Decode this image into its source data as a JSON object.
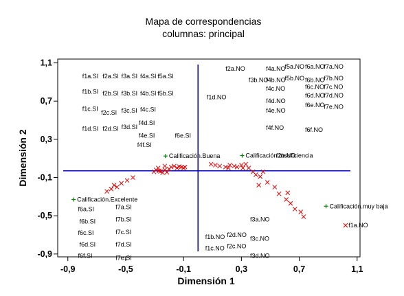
{
  "chart_data": {
    "type": "scatter",
    "title": "Mapa de correspondencias",
    "subtitle": "columnas: principal",
    "xlabel": "Dimensión 1",
    "ylabel": "Dimensión 2",
    "xlim": [
      -0.97,
      1.12
    ],
    "ylim": [
      -0.93,
      1.14
    ],
    "xticks": [
      -0.9,
      -0.5,
      -0.1,
      0.3,
      0.7,
      1.1
    ],
    "xtick_labels": [
      "-0,9",
      "-0,5",
      "-0,1",
      "0,3",
      "0,7",
      "1,1"
    ],
    "yticks": [
      -0.9,
      -0.5,
      -0.1,
      0.3,
      0.7,
      1.1
    ],
    "ytick_labels": [
      "-0,9",
      "-0,5",
      "-0,1",
      "0,3",
      "0,7",
      "1,1"
    ],
    "reference_lines": {
      "x": 0.0,
      "y": -0.03,
      "color": "#0000cc"
    },
    "grid": false,
    "colors": {
      "axes": "#000000",
      "reference": "#0000cc",
      "column_points": "#e00000",
      "category_points": "#008000"
    },
    "categories": [
      {
        "label": "Calificación.Buena",
        "x": -0.225,
        "y": 0.125
      },
      {
        "label": "Calificación.Insuficiencia",
        "x": 0.305,
        "y": 0.13
      },
      {
        "label": "Calificación.Excelente",
        "x": -0.86,
        "y": -0.33
      },
      {
        "label": "Calificación.muy baja",
        "x": 0.885,
        "y": -0.4
      }
    ],
    "column_points": [
      {
        "x": -0.305,
        "y": -0.04
      },
      {
        "x": -0.29,
        "y": -0.02
      },
      {
        "x": -0.275,
        "y": 0.0
      },
      {
        "x": -0.26,
        "y": -0.035
      },
      {
        "x": -0.245,
        "y": -0.05
      },
      {
        "x": -0.23,
        "y": -0.02
      },
      {
        "x": -0.215,
        "y": -0.045
      },
      {
        "x": -0.2,
        "y": -0.01
      },
      {
        "x": -0.185,
        "y": 0.01
      },
      {
        "x": -0.165,
        "y": 0.02
      },
      {
        "x": -0.145,
        "y": 0.0
      },
      {
        "x": -0.13,
        "y": 0.015
      },
      {
        "x": -0.115,
        "y": 0.01
      },
      {
        "x": -0.1,
        "y": 0.0
      },
      {
        "x": -0.09,
        "y": 0.01
      },
      {
        "x": -0.23,
        "y": 0.02
      },
      {
        "x": -0.27,
        "y": -0.03
      },
      {
        "x": -0.45,
        "y": -0.1
      },
      {
        "x": -0.49,
        "y": -0.13
      },
      {
        "x": -0.53,
        "y": -0.16
      },
      {
        "x": -0.56,
        "y": -0.2
      },
      {
        "x": -0.6,
        "y": -0.22
      },
      {
        "x": -0.63,
        "y": -0.245
      },
      {
        "x": -0.58,
        "y": -0.18
      },
      {
        "x": 0.09,
        "y": 0.04
      },
      {
        "x": 0.12,
        "y": 0.03
      },
      {
        "x": 0.15,
        "y": 0.02
      },
      {
        "x": 0.19,
        "y": 0.01
      },
      {
        "x": 0.22,
        "y": 0.03
      },
      {
        "x": 0.25,
        "y": 0.02
      },
      {
        "x": 0.27,
        "y": 0.01
      },
      {
        "x": 0.21,
        "y": 0.0
      },
      {
        "x": 0.3,
        "y": 0.03
      },
      {
        "x": 0.31,
        "y": 0.0
      },
      {
        "x": 0.33,
        "y": 0.04
      },
      {
        "x": 0.35,
        "y": 0.0
      },
      {
        "x": 0.38,
        "y": -0.04
      },
      {
        "x": 0.4,
        "y": -0.07
      },
      {
        "x": 0.43,
        "y": -0.09
      },
      {
        "x": 0.45,
        "y": -0.04
      },
      {
        "x": 0.48,
        "y": -0.15
      },
      {
        "x": 0.53,
        "y": -0.2
      },
      {
        "x": 0.56,
        "y": -0.27
      },
      {
        "x": 0.61,
        "y": -0.33
      },
      {
        "x": 0.64,
        "y": -0.37
      },
      {
        "x": 0.67,
        "y": -0.43
      },
      {
        "x": 0.71,
        "y": -0.46
      },
      {
        "x": 0.73,
        "y": -0.51
      },
      {
        "x": 0.62,
        "y": -0.26
      },
      {
        "x": 0.42,
        "y": -0.18
      },
      {
        "x": 1.02,
        "y": -0.6
      }
    ],
    "point_labels": [
      {
        "label": "f1a.SI",
        "x": -0.8,
        "y": 0.96
      },
      {
        "label": "f2a.SI",
        "x": -0.66,
        "y": 0.96
      },
      {
        "label": "f3a.SI",
        "x": -0.53,
        "y": 0.96
      },
      {
        "label": "f4a.SI",
        "x": -0.4,
        "y": 0.96
      },
      {
        "label": "f5a.SI",
        "x": -0.28,
        "y": 0.96
      },
      {
        "label": "f1b.SI",
        "x": -0.8,
        "y": 0.8
      },
      {
        "label": "f2b.SI",
        "x": -0.66,
        "y": 0.78
      },
      {
        "label": "f3b.SI",
        "x": -0.53,
        "y": 0.78
      },
      {
        "label": "f4b.SI",
        "x": -0.4,
        "y": 0.78
      },
      {
        "label": "f5b.SI",
        "x": -0.28,
        "y": 0.78
      },
      {
        "label": "f1c.SI",
        "x": -0.8,
        "y": 0.62
      },
      {
        "label": "f2c.SI",
        "x": -0.67,
        "y": 0.58
      },
      {
        "label": "f3c.SI",
        "x": -0.53,
        "y": 0.6
      },
      {
        "label": "f4c.SI",
        "x": -0.4,
        "y": 0.61
      },
      {
        "label": "f4d.SI",
        "x": -0.41,
        "y": 0.47
      },
      {
        "label": "f3d.SI",
        "x": -0.53,
        "y": 0.43
      },
      {
        "label": "f1d.SI",
        "x": -0.8,
        "y": 0.41
      },
      {
        "label": "f2d.SI",
        "x": -0.66,
        "y": 0.41
      },
      {
        "label": "f4e.SI",
        "x": -0.41,
        "y": 0.34
      },
      {
        "label": "f4f.SI",
        "x": -0.42,
        "y": 0.24
      },
      {
        "label": "f6e.SI",
        "x": -0.16,
        "y": 0.34
      },
      {
        "label": "f1d.NO",
        "x": 0.06,
        "y": 0.74
      },
      {
        "label": "f2a.NO",
        "x": 0.19,
        "y": 1.04
      },
      {
        "label": "f3b.NO",
        "x": 0.35,
        "y": 0.92
      },
      {
        "label": "f4b.NO",
        "x": 0.47,
        "y": 0.92
      },
      {
        "label": "f4a.NO",
        "x": 0.47,
        "y": 1.04
      },
      {
        "label": "f5a.NO",
        "x": 0.6,
        "y": 1.06
      },
      {
        "label": "f5b.NO",
        "x": 0.6,
        "y": 0.94
      },
      {
        "label": "f6a.NO",
        "x": 0.74,
        "y": 1.06
      },
      {
        "label": "f7a.NO",
        "x": 0.87,
        "y": 1.06
      },
      {
        "label": "f6b.NO",
        "x": 0.74,
        "y": 0.92
      },
      {
        "label": "f7b.NO",
        "x": 0.87,
        "y": 0.94
      },
      {
        "label": "f6c.NO",
        "x": 0.74,
        "y": 0.85
      },
      {
        "label": "f7c.NO",
        "x": 0.87,
        "y": 0.85
      },
      {
        "label": "f6d.NO",
        "x": 0.74,
        "y": 0.76
      },
      {
        "label": "f7d.NO",
        "x": 0.87,
        "y": 0.76
      },
      {
        "label": "f6e.NO",
        "x": 0.74,
        "y": 0.66
      },
      {
        "label": "f7e.NO",
        "x": 0.87,
        "y": 0.64
      },
      {
        "label": "f4c.NO",
        "x": 0.47,
        "y": 0.83
      },
      {
        "label": "f4d.NO",
        "x": 0.47,
        "y": 0.7
      },
      {
        "label": "f4e.NO",
        "x": 0.47,
        "y": 0.6
      },
      {
        "label": "f4f.NO",
        "x": 0.47,
        "y": 0.42
      },
      {
        "label": "f6f.NO",
        "x": 0.74,
        "y": 0.4
      },
      {
        "label": "f2b.NO",
        "x": 0.54,
        "y": 0.13
      },
      {
        "label": "f6a.SI",
        "x": -0.83,
        "y": -0.43
      },
      {
        "label": "f6b.SI",
        "x": -0.82,
        "y": -0.56
      },
      {
        "label": "f6c.SI",
        "x": -0.83,
        "y": -0.68
      },
      {
        "label": "f6d.SI",
        "x": -0.82,
        "y": -0.8
      },
      {
        "label": "f6f.SI",
        "x": -0.83,
        "y": -0.92
      },
      {
        "label": "f7a.SI",
        "x": -0.57,
        "y": -0.41
      },
      {
        "label": "f7b.SI",
        "x": -0.57,
        "y": -0.54
      },
      {
        "label": "f7c.SI",
        "x": -0.57,
        "y": -0.67
      },
      {
        "label": "f7d.SI",
        "x": -0.57,
        "y": -0.8
      },
      {
        "label": "f7e.SI",
        "x": -0.57,
        "y": -0.94
      },
      {
        "label": "f3a.NO",
        "x": 0.36,
        "y": -0.54
      },
      {
        "label": "f1b.NO",
        "x": 0.05,
        "y": -0.72
      },
      {
        "label": "f2d.NO",
        "x": 0.2,
        "y": -0.7
      },
      {
        "label": "f3c.NO",
        "x": 0.36,
        "y": -0.74
      },
      {
        "label": "f1c.NO",
        "x": 0.05,
        "y": -0.84
      },
      {
        "label": "f2c.NO",
        "x": 0.2,
        "y": -0.82
      },
      {
        "label": "f3d.NO",
        "x": 0.36,
        "y": -0.92
      },
      {
        "label": "f1a.NO",
        "x": 1.04,
        "y": -0.6
      }
    ]
  }
}
